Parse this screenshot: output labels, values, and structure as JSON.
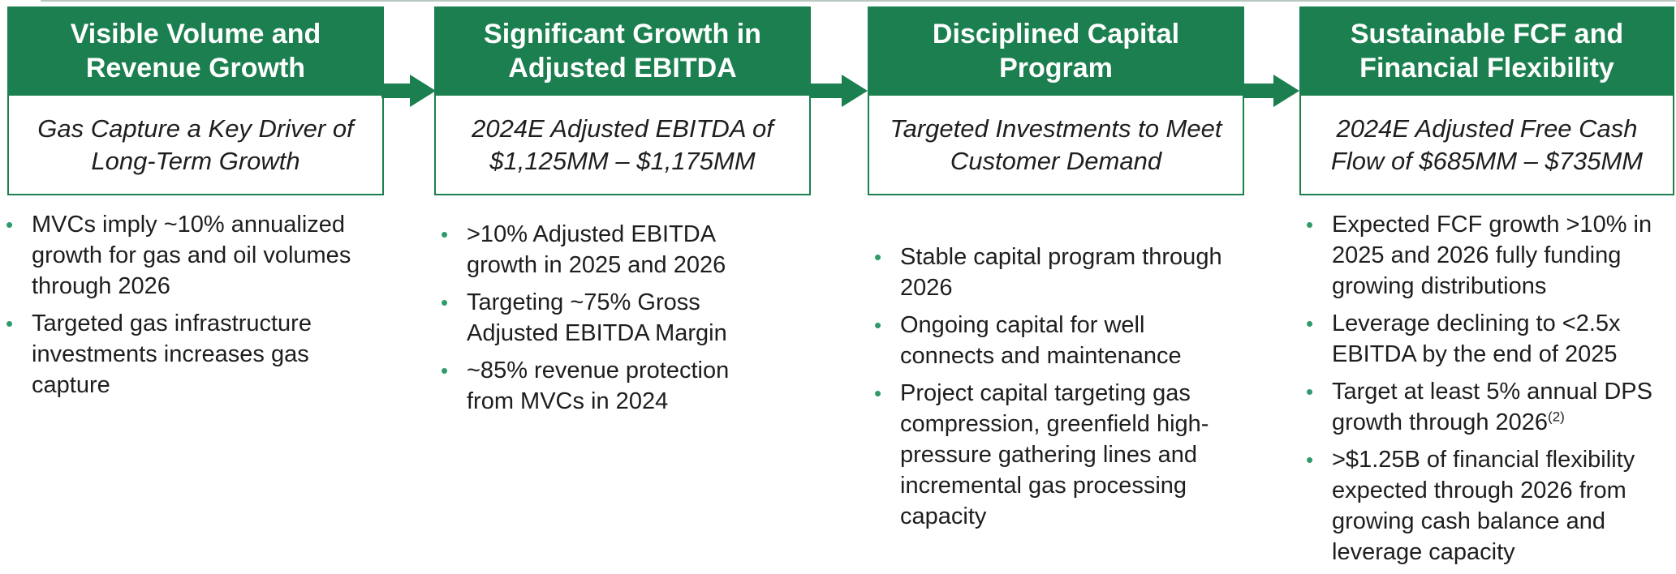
{
  "columns": [
    {
      "title": "Visible Volume and Revenue Growth",
      "subtitle": "Gas Capture a Key Driver of Long-Term Growth",
      "bullets": [
        {
          "text": "MVCs imply ~10% annualized growth for gas and oil volumes through 2026"
        },
        {
          "text": "Targeted gas infrastructure investments increases gas capture"
        }
      ]
    },
    {
      "title": "Significant Growth in Adjusted EBITDA",
      "subtitle": "2024E Adjusted EBITDA of $1,125MM – $1,175MM",
      "bullets": [
        {
          "text": ">10% Adjusted EBITDA growth in 2025 and 2026"
        },
        {
          "text": "Targeting ~75% Gross Adjusted EBITDA Margin"
        },
        {
          "text": "~85% revenue protection from MVCs in 2024"
        }
      ]
    },
    {
      "title": "Disciplined Capital Program",
      "subtitle": "Targeted Investments to Meet Customer Demand",
      "bullets": [
        {
          "text": "Stable capital program through 2026"
        },
        {
          "text": "Ongoing capital for well connects and maintenance"
        },
        {
          "text": "Project capital targeting gas compression, greenfield high-pressure gathering lines and incremental gas processing capacity"
        }
      ]
    },
    {
      "title": "Sustainable FCF and Financial Flexibility",
      "subtitle": "2024E Adjusted Free Cash Flow of $685MM – $735MM",
      "bullets": [
        {
          "text": "Expected FCF growth >10% in 2025 and 2026 fully funding growing distributions"
        },
        {
          "text": "Leverage declining to <2.5x EBITDA by the end of 2025"
        },
        {
          "text": "Target at least 5% annual DPS growth through 2026",
          "superscript": "(2)"
        },
        {
          "text": ">$1.25B of financial flexibility expected through 2026 from growing cash balance and leverage capacity"
        }
      ]
    }
  ]
}
